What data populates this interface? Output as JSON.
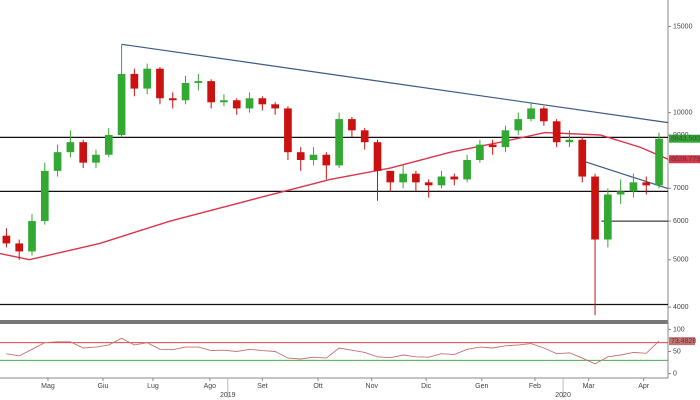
{
  "chart_data": {
    "type": "candlestick",
    "log_scale": true,
    "xlim": [
      0,
      52.2
    ],
    "xticks": [
      {
        "value": 3.75,
        "label": "Mag"
      },
      {
        "value": 8.05,
        "label": "Giu"
      },
      {
        "value": 11.95,
        "label": "Lug"
      },
      {
        "value": 16.4,
        "label": "Ago"
      },
      {
        "value": 20.5,
        "label": "Set"
      },
      {
        "value": 24.85,
        "label": "Ott"
      },
      {
        "value": 29.05,
        "label": "Nov"
      },
      {
        "value": 33.3,
        "label": "Dic"
      },
      {
        "value": 37.65,
        "label": "Gen"
      },
      {
        "value": 41.8,
        "label": "Feb"
      },
      {
        "value": 46.0,
        "label": "Mar"
      },
      {
        "value": 50.3,
        "label": "Apr"
      }
    ],
    "year_ticks": [
      {
        "value": 17.8,
        "label": "2019"
      },
      {
        "value": 44.0,
        "label": "2020"
      }
    ],
    "ylim": [
      3800,
      17000
    ],
    "yticks": [
      4000,
      5000,
      6000,
      7000,
      8000,
      9000,
      10000,
      15000
    ],
    "x": [
      0.5,
      1.5,
      2.5,
      3.5,
      4.5,
      5.5,
      6.5,
      7.5,
      8.5,
      9.5,
      10.5,
      11.5,
      12.5,
      13.5,
      14.5,
      15.5,
      16.5,
      17.5,
      18.5,
      19.5,
      20.5,
      21.5,
      22.5,
      23.5,
      24.5,
      25.5,
      26.5,
      27.5,
      28.5,
      29.5,
      30.5,
      31.5,
      32.5,
      33.5,
      34.5,
      35.5,
      36.5,
      37.5,
      38.5,
      39.5,
      40.5,
      41.5,
      42.5,
      43.5,
      44.5,
      45.5,
      46.5,
      47.5,
      48.5,
      49.5,
      50.5,
      51.5
    ],
    "open": [
      5600,
      5400,
      5200,
      6000,
      7600,
      8300,
      8700,
      7900,
      8200,
      9000,
      12000,
      11200,
      12300,
      10700,
      10600,
      11500,
      11600,
      10500,
      10600,
      10200,
      10700,
      10400,
      10200,
      8300,
      8000,
      8200,
      7800,
      9700,
      9200,
      8700,
      7600,
      7200,
      7500,
      7200,
      7100,
      7400,
      7300,
      8000,
      8600,
      8500,
      9200,
      9700,
      10200,
      9600,
      8700,
      8800,
      7400,
      5500,
      6800,
      6900,
      7200,
      7100
    ],
    "high": [
      5800,
      5500,
      6200,
      7900,
      8600,
      9200,
      8800,
      8400,
      9300,
      13800,
      12300,
      12600,
      12400,
      11000,
      11900,
      12000,
      11700,
      10900,
      10700,
      11000,
      10800,
      10500,
      10300,
      8500,
      8500,
      8300,
      10000,
      9800,
      9300,
      8800,
      7600,
      7800,
      7600,
      7300,
      7600,
      7500,
      8200,
      8800,
      8800,
      9400,
      10000,
      10500,
      10300,
      9700,
      9200,
      8900,
      7500,
      7000,
      7300,
      7500,
      7400,
      9100
    ],
    "low": [
      5300,
      5000,
      5100,
      5900,
      7400,
      8100,
      7700,
      7700,
      8100,
      8900,
      10800,
      10900,
      10400,
      10200,
      10400,
      11100,
      10200,
      10300,
      9900,
      10000,
      10100,
      9900,
      8000,
      7600,
      7800,
      7300,
      7700,
      8900,
      8400,
      6600,
      6900,
      7000,
      6900,
      6700,
      7000,
      7100,
      7200,
      7900,
      8200,
      8300,
      9000,
      9600,
      9400,
      8500,
      8500,
      7200,
      3850,
      5300,
      6500,
      6700,
      6800,
      7000
    ],
    "close": [
      5400,
      5200,
      6000,
      7600,
      8300,
      8700,
      7900,
      8200,
      9000,
      12000,
      11200,
      12300,
      10700,
      10600,
      11500,
      11600,
      10500,
      10600,
      10200,
      10700,
      10400,
      10200,
      8300,
      8000,
      8200,
      7800,
      9700,
      9200,
      8700,
      7600,
      7200,
      7500,
      7200,
      7100,
      7400,
      7300,
      8000,
      8600,
      8500,
      9200,
      9700,
      10200,
      9600,
      8700,
      8800,
      7400,
      5500,
      6800,
      6900,
      7200,
      7100,
      8843.5
    ],
    "up_color": "#33a833",
    "down_color": "#cc1111",
    "last_label": {
      "value": 8843.5,
      "label": "8843.5000",
      "color": "#33a833"
    },
    "moving_average": {
      "color": "#d9364a",
      "x": [
        0,
        2.3,
        7.8,
        13.3,
        20.3,
        25.8,
        30.5,
        35.2,
        39.1,
        42.6,
        46.9,
        50,
        52.2
      ],
      "values": [
        5150,
        5000,
        5400,
        6000,
        6700,
        7300,
        7700,
        8300,
        8700,
        9100,
        9000,
        8500,
        8028.7799
      ],
      "last_label": {
        "value": 8028.7799,
        "label": "8028.7799"
      }
    },
    "levels": {
      "color": "#111111",
      "values": [
        8900,
        6900,
        4050
      ]
    },
    "support": {
      "color": "#111111",
      "x": [
        47,
        52.2
      ],
      "values": [
        6000,
        6000
      ]
    },
    "trendlines": [
      {
        "color": "#3b5a85",
        "x": [
          9.5,
          52.2
        ],
        "values": [
          13800,
          9540
        ]
      },
      {
        "color": "#3b5a85",
        "x": [
          45.5,
          52.2
        ],
        "values": [
          7970,
          6990
        ]
      }
    ],
    "rsi": {
      "color": "#c87070",
      "ylim": [
        -10,
        110
      ],
      "yticks": [
        0,
        50,
        100
      ],
      "levels": [
        {
          "value": 70,
          "color": "#d62728"
        },
        {
          "value": 30,
          "color": "#2ca02c"
        }
      ],
      "values": [
        45,
        40,
        55,
        70,
        72,
        72,
        58,
        60,
        65,
        80,
        65,
        70,
        55,
        54,
        60,
        60,
        52,
        53,
        50,
        55,
        52,
        50,
        35,
        33,
        37,
        35,
        58,
        53,
        48,
        38,
        36,
        42,
        38,
        37,
        45,
        43,
        55,
        60,
        58,
        63,
        65,
        68,
        58,
        45,
        47,
        35,
        22,
        38,
        42,
        48,
        46,
        73.4828
      ]
    }
  }
}
